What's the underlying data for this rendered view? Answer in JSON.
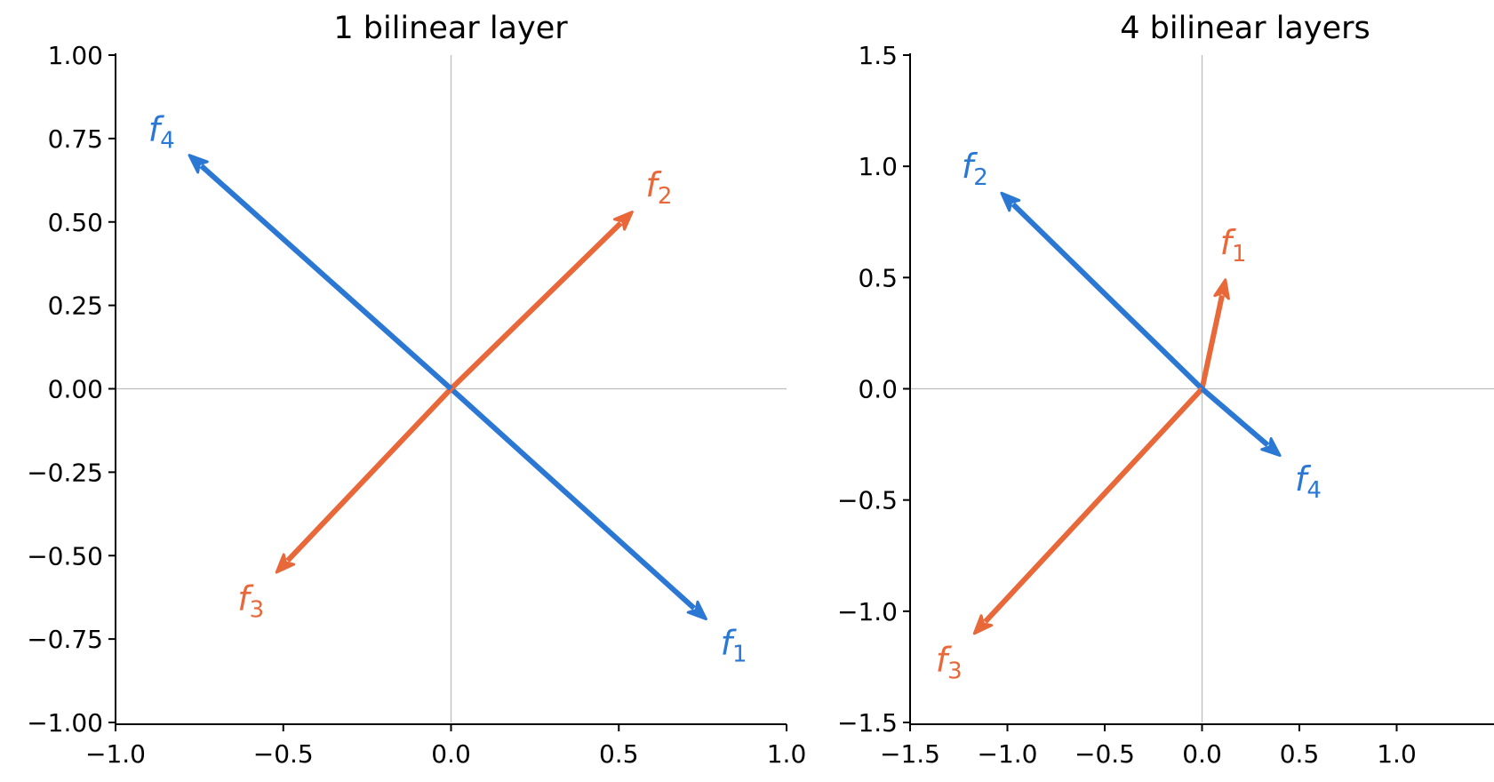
{
  "colors": {
    "blue": "#2b78d4",
    "orange": "#e8683a",
    "axis_line": "#000000",
    "zero_line": "#bdbdbd"
  },
  "chart_data": [
    {
      "type": "vector",
      "title": "1 bilinear layer",
      "xlabel": "",
      "ylabel": "",
      "xlim": [
        -1.0,
        1.0
      ],
      "ylim": [
        -1.0,
        1.0
      ],
      "xticks": [
        -1.0,
        -0.5,
        0.0,
        0.5,
        1.0
      ],
      "xtick_labels": [
        "−1.0",
        "−0.5",
        "0.0",
        "0.5",
        "1.0"
      ],
      "yticks": [
        -1.0,
        -0.75,
        -0.5,
        -0.25,
        0.0,
        0.25,
        0.5,
        0.75,
        1.0
      ],
      "ytick_labels": [
        "−1.00",
        "−0.75",
        "−0.50",
        "−0.25",
        "0.00",
        "0.25",
        "0.50",
        "0.75",
        "1.00"
      ],
      "zero_lines": true,
      "grid": false,
      "vectors": [
        {
          "label": "f",
          "sub": "1",
          "color": "blue",
          "x": 0.76,
          "y": -0.69
        },
        {
          "label": "f",
          "sub": "2",
          "color": "orange",
          "x": 0.54,
          "y": 0.53
        },
        {
          "label": "f",
          "sub": "3",
          "color": "orange",
          "x": -0.52,
          "y": -0.55
        },
        {
          "label": "f",
          "sub": "4",
          "color": "blue",
          "x": -0.78,
          "y": 0.7
        }
      ]
    },
    {
      "type": "vector",
      "title": "4 bilinear layers",
      "xlabel": "",
      "ylabel": "",
      "xlim": [
        -1.5,
        1.5
      ],
      "ylim": [
        -1.5,
        1.5
      ],
      "xticks": [
        -1.5,
        -1.0,
        -0.5,
        0.0,
        0.5,
        1.0
      ],
      "xtick_labels": [
        "−1.5",
        "−1.0",
        "−0.5",
        "0.0",
        "0.5",
        "1.0"
      ],
      "yticks": [
        -1.5,
        -1.0,
        -0.5,
        0.0,
        0.5,
        1.0,
        1.5
      ],
      "ytick_labels": [
        "−1.5",
        "−1.0",
        "−0.5",
        "0.0",
        "0.5",
        "1.0",
        "1.5"
      ],
      "zero_lines": true,
      "grid": false,
      "vectors": [
        {
          "label": "f",
          "sub": "1",
          "color": "orange",
          "x": 0.12,
          "y": 0.49
        },
        {
          "label": "f",
          "sub": "2",
          "color": "blue",
          "x": -1.03,
          "y": 0.88
        },
        {
          "label": "f",
          "sub": "3",
          "color": "orange",
          "x": -1.17,
          "y": -1.1
        },
        {
          "label": "f",
          "sub": "4",
          "color": "blue",
          "x": 0.4,
          "y": -0.3
        }
      ]
    }
  ]
}
